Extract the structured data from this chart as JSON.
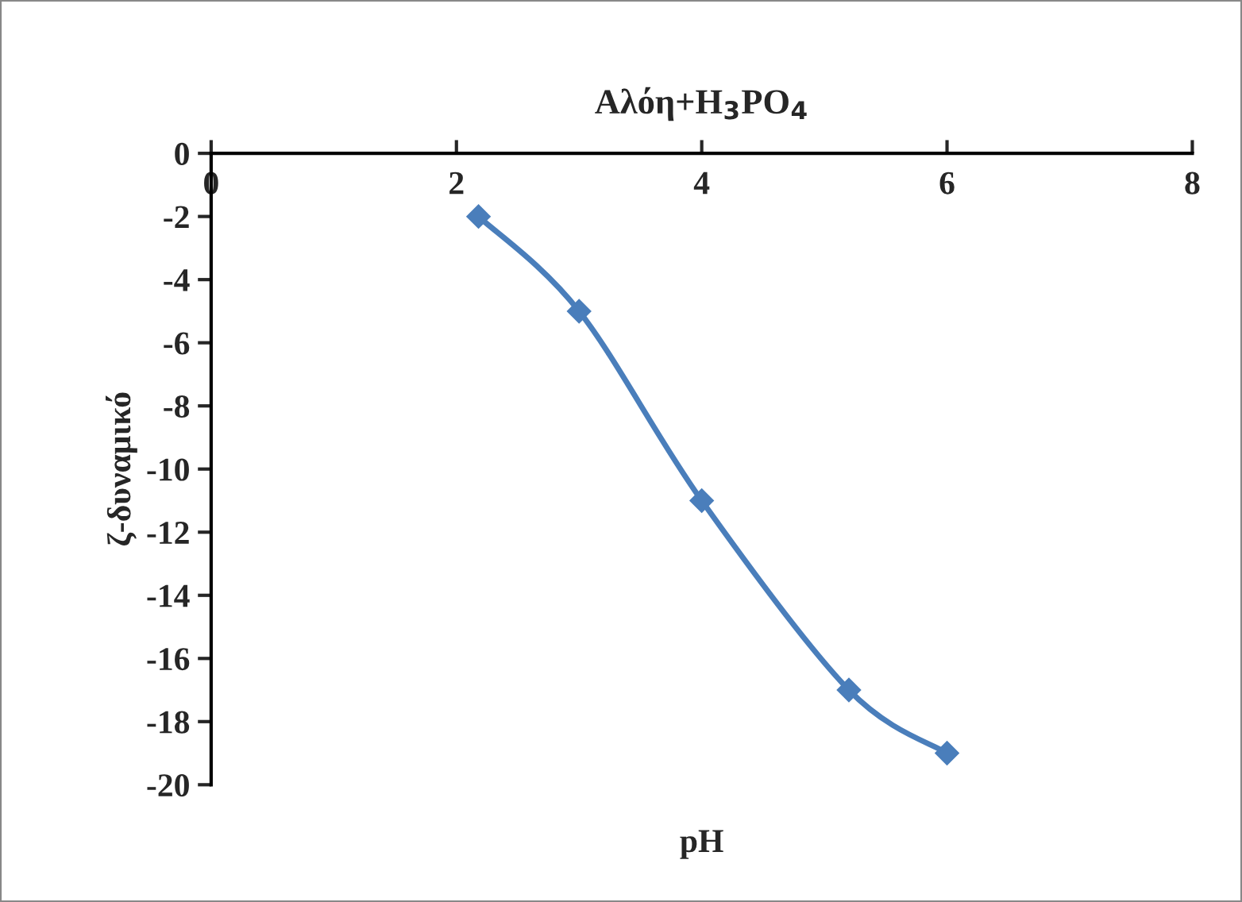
{
  "chart_data": {
    "type": "line",
    "title": "Αλόη+H$_{3}$PO$_{4}$",
    "xlabel": "pH",
    "ylabel": "ζ-δυναμικό",
    "series": [
      {
        "color": "#4a7ebb",
        "x": [
          2.18,
          3.0,
          4.0,
          5.2,
          6.0
        ],
        "values": [
          -2,
          -5,
          -11,
          -17,
          -19
        ]
      }
    ],
    "xlim": [
      0,
      8
    ],
    "xticks": [
      0,
      2,
      4,
      6,
      8
    ],
    "ylim": [
      -20,
      0
    ],
    "yticks": [
      -20,
      -18,
      -16,
      -14,
      -12,
      -10,
      -8,
      -6,
      -4,
      -2,
      0
    ],
    "marker": "diamond",
    "line_style": "solid",
    "grid": false
  }
}
